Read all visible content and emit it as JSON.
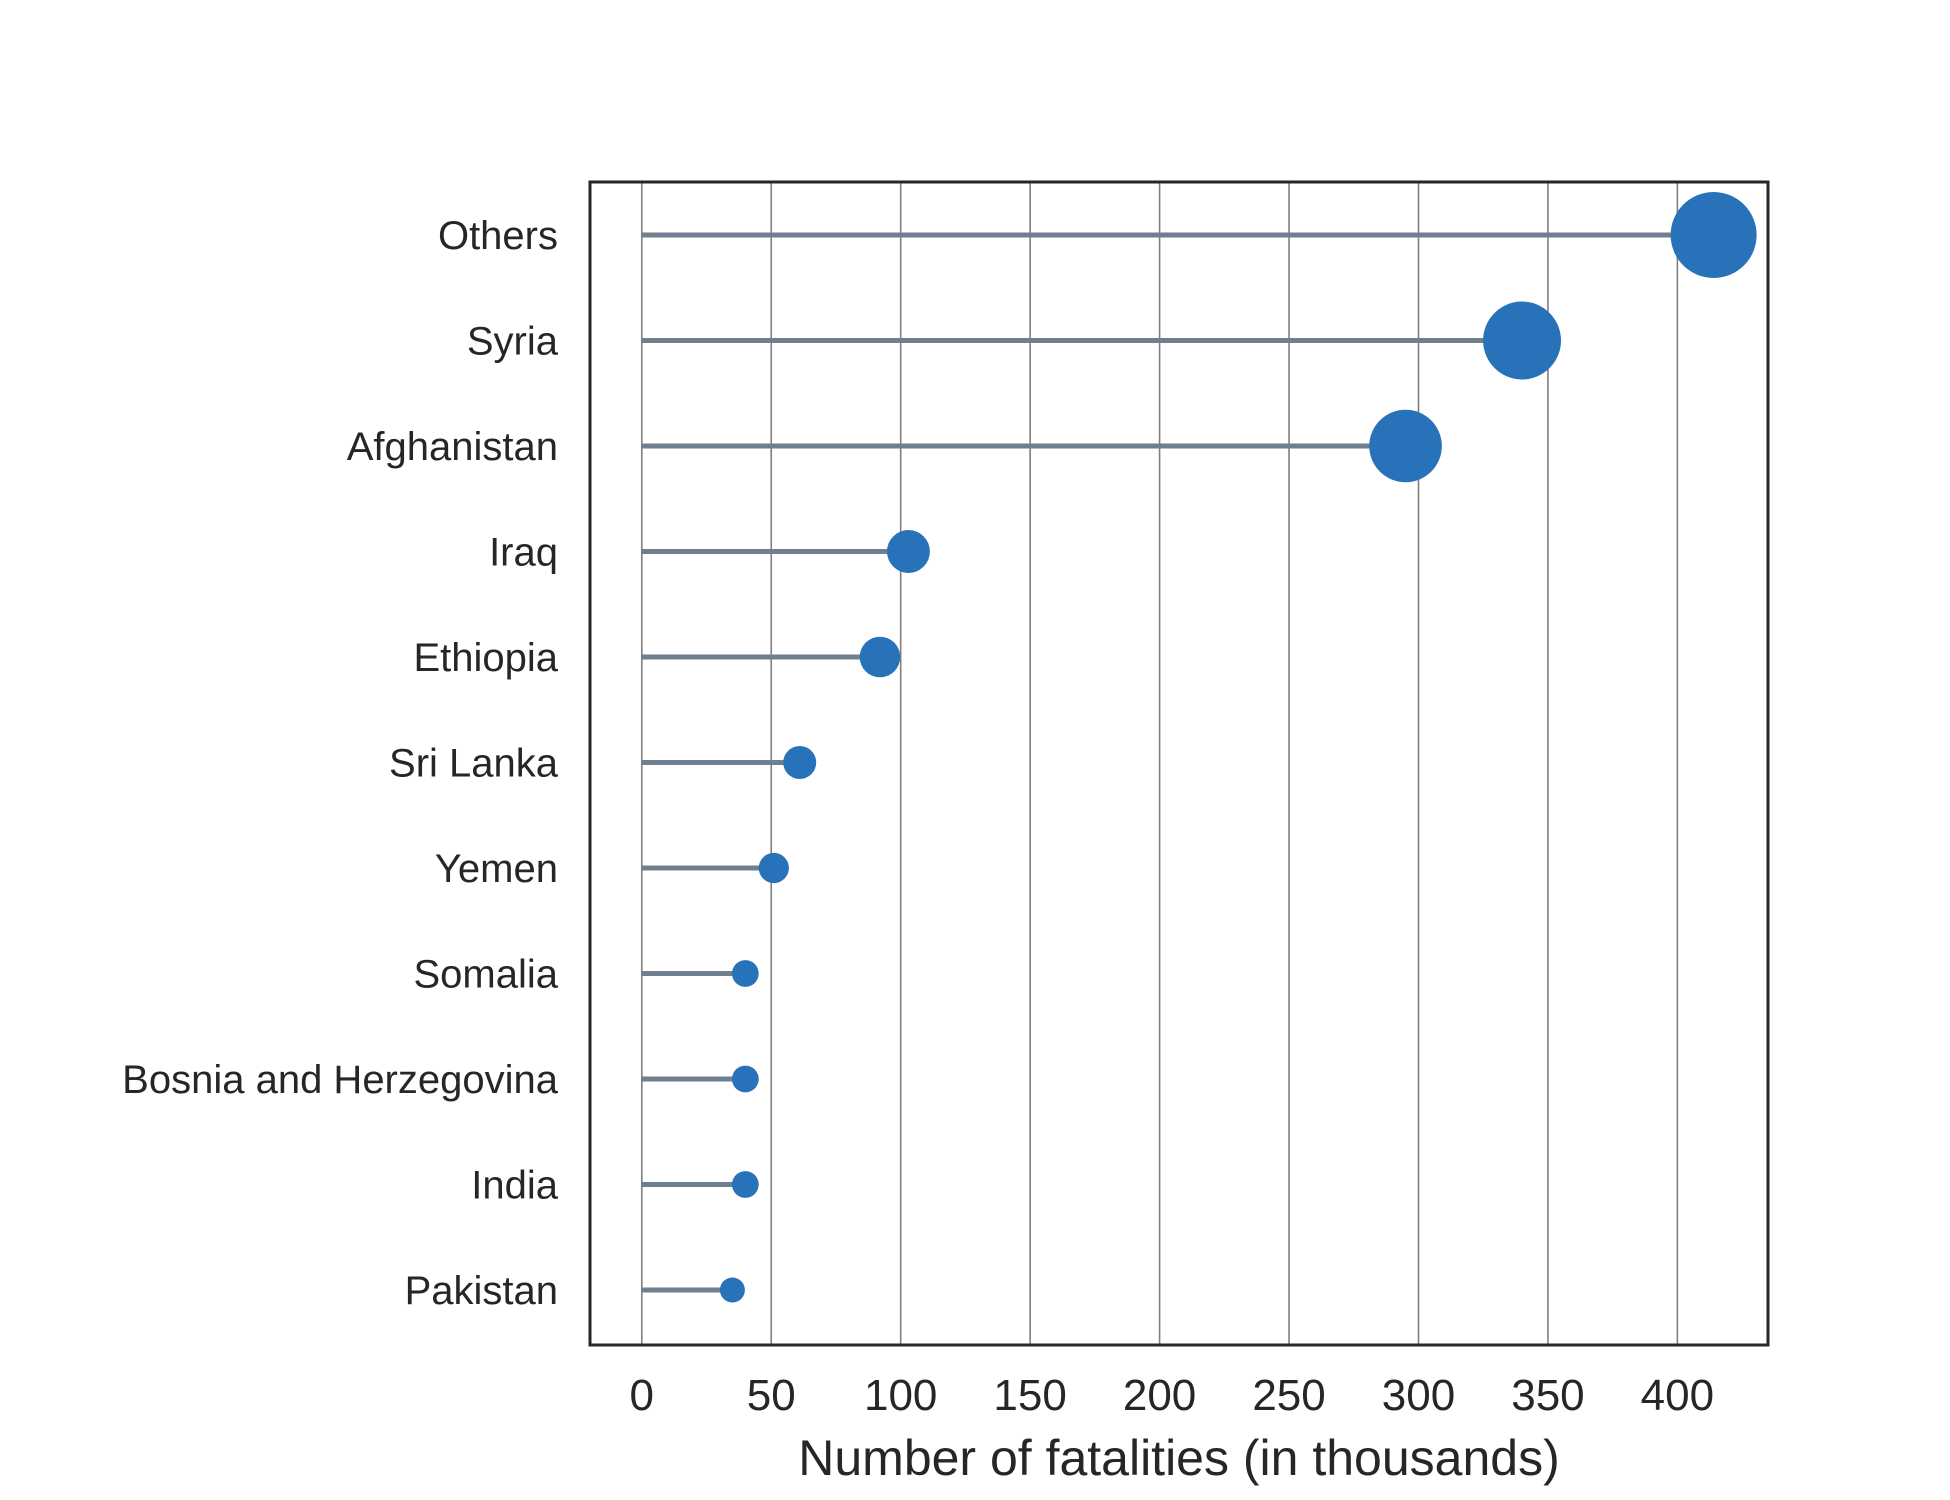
{
  "chart_data": {
    "type": "lollipop",
    "title": "",
    "xlabel": "Number of fatalities (in thousands)",
    "ylabel": "",
    "xlim": [
      -20,
      435
    ],
    "xticks": [
      0,
      50,
      100,
      150,
      200,
      250,
      300,
      350,
      400
    ],
    "grid": "vertical",
    "marker_size_encodes": "value",
    "categories": [
      "Others",
      "Syria",
      "Afghanistan",
      "Iraq",
      "Ethiopia",
      "Sri Lanka",
      "Yemen",
      "Somalia",
      "Bosnia and Herzegovina",
      "India",
      "Pakistan"
    ],
    "values": [
      414,
      340,
      295,
      103,
      92,
      61,
      51,
      40,
      40,
      40,
      35
    ],
    "colors": {
      "marker": "#2872b9",
      "stem": "#6e7f90",
      "grid": "#7f7f7f",
      "frame": "#262626",
      "text": "#262626"
    }
  }
}
